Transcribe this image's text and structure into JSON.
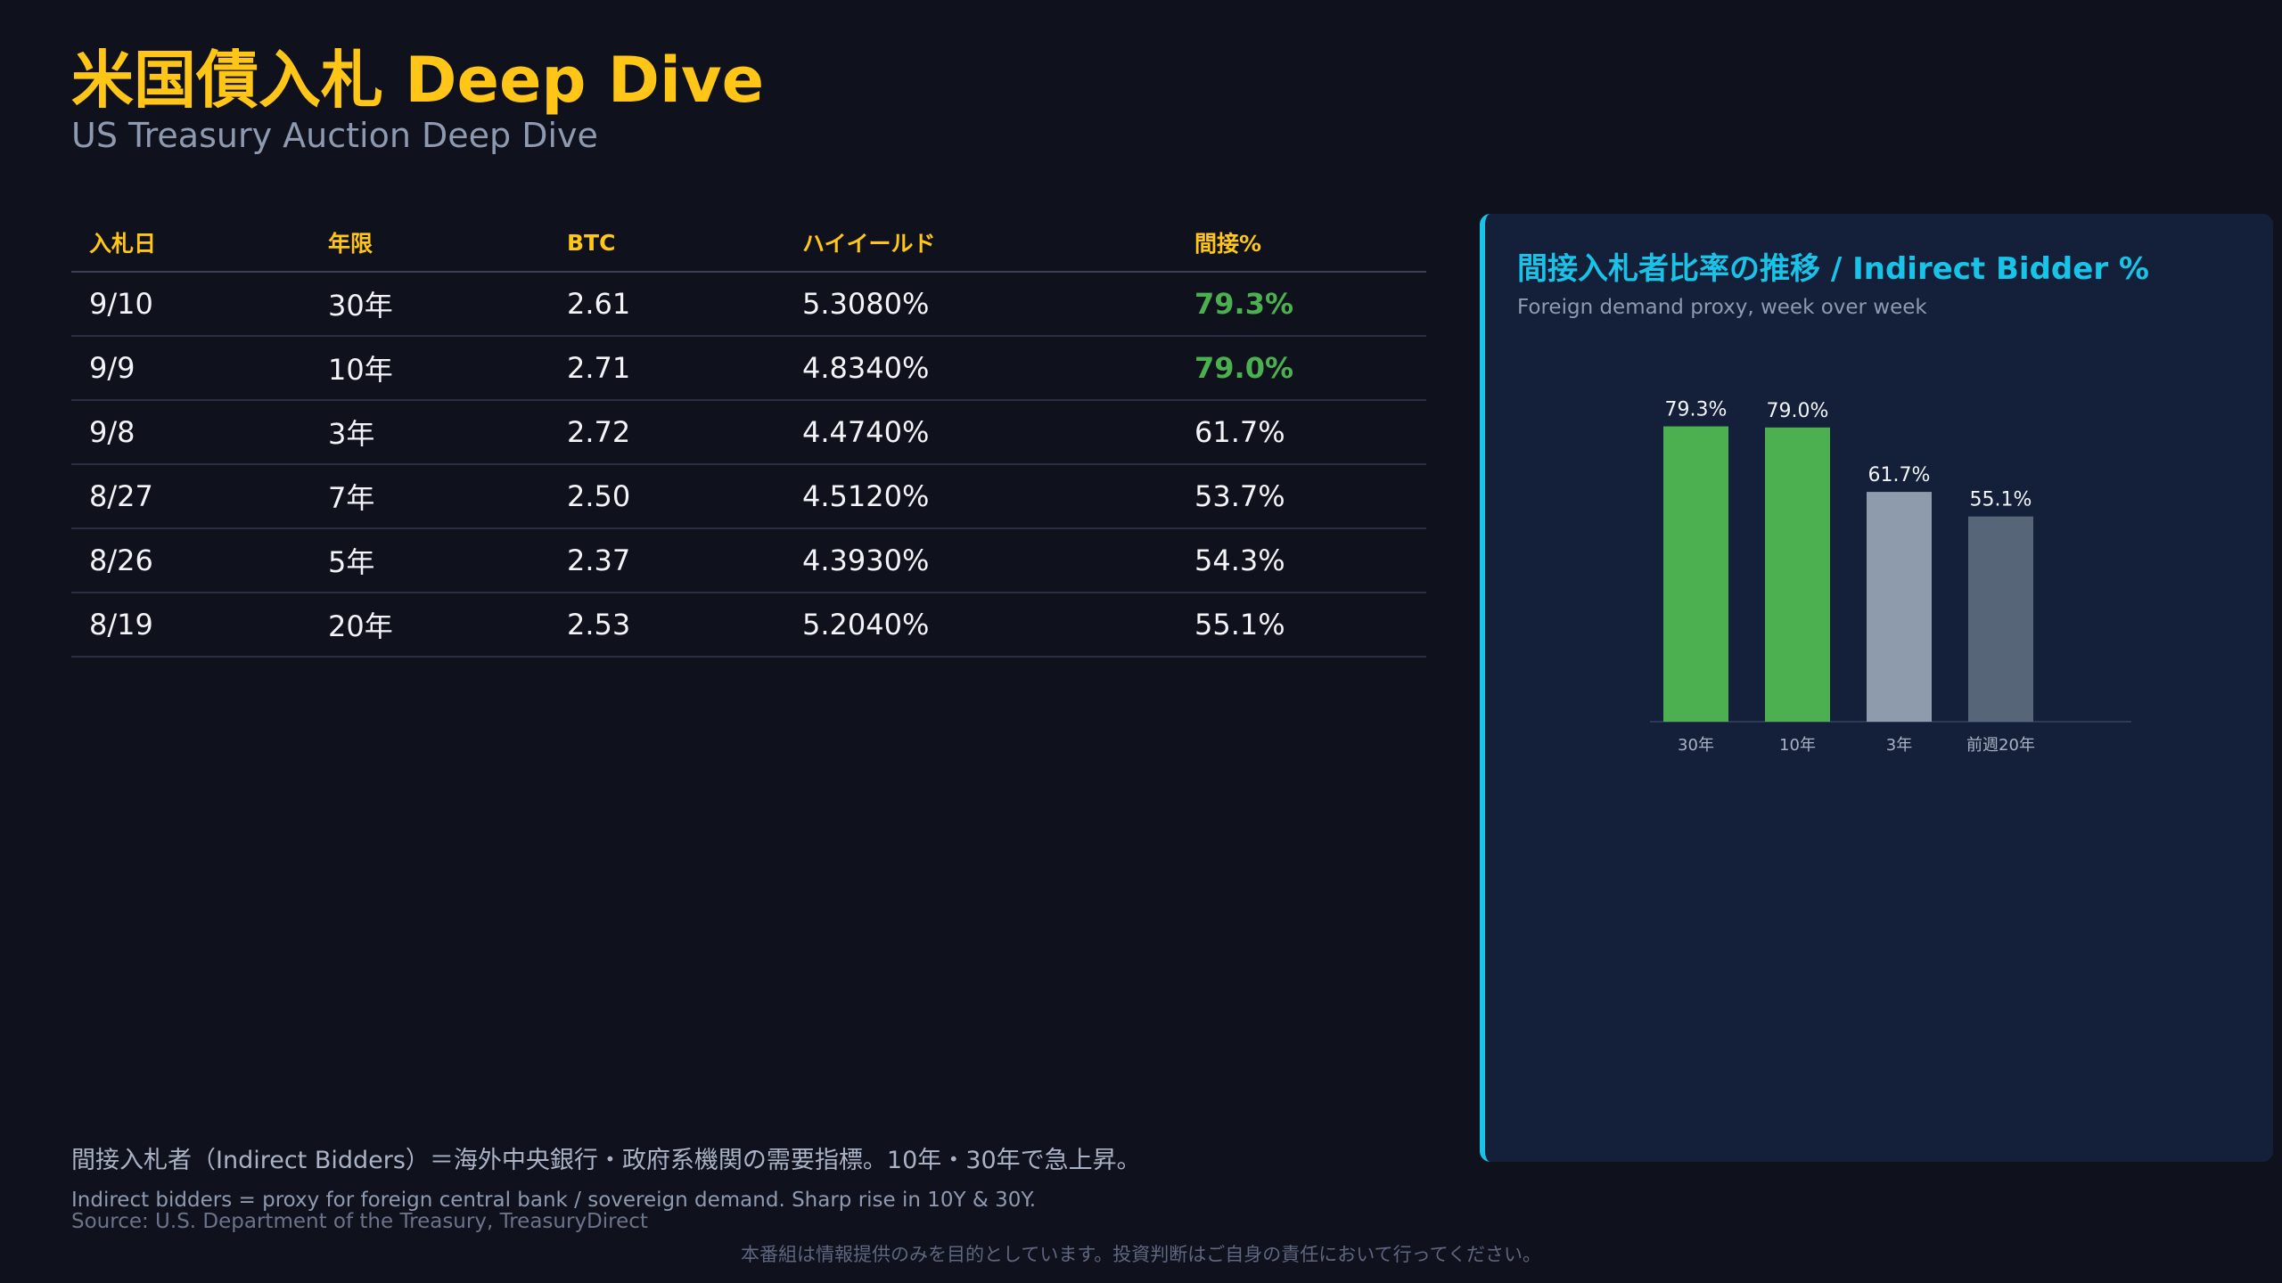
{
  "header": {
    "title": "米国債入札 Deep Dive",
    "subtitle": "US Treasury Auction Deep Dive"
  },
  "table": {
    "columns": [
      "入札日",
      "年限",
      "BTC",
      "ハイイールド",
      "間接%"
    ],
    "rows": [
      {
        "date": "9/10",
        "tenor": "30年",
        "btc": "2.61",
        "high_yield": "5.3080%",
        "indirect": "79.3%",
        "highlight": true
      },
      {
        "date": "9/9",
        "tenor": "10年",
        "btc": "2.71",
        "high_yield": "4.8340%",
        "indirect": "79.0%",
        "highlight": true
      },
      {
        "date": "9/8",
        "tenor": "3年",
        "btc": "2.72",
        "high_yield": "4.4740%",
        "indirect": "61.7%",
        "highlight": false
      },
      {
        "date": "8/27",
        "tenor": "7年",
        "btc": "2.50",
        "high_yield": "4.5120%",
        "indirect": "53.7%",
        "highlight": false
      },
      {
        "date": "8/26",
        "tenor": "5年",
        "btc": "2.37",
        "high_yield": "4.3930%",
        "indirect": "54.3%",
        "highlight": false
      },
      {
        "date": "8/19",
        "tenor": "20年",
        "btc": "2.53",
        "high_yield": "5.2040%",
        "indirect": "55.1%",
        "highlight": false
      }
    ]
  },
  "chart_data": {
    "type": "bar",
    "title": "間接入札者比率の推移 / Indirect Bidder %",
    "subtitle": "Foreign demand proxy, week over week",
    "categories": [
      "30年",
      "10年",
      "3年",
      "前週20年"
    ],
    "values": [
      79.3,
      79.0,
      61.7,
      55.1
    ],
    "value_labels": [
      "79.3%",
      "79.0%",
      "61.7%",
      "55.1%"
    ],
    "colors": [
      "#4caf50",
      "#4caf50",
      "#8d9bac",
      "#566578"
    ],
    "ylim": [
      0,
      100
    ],
    "grid": false,
    "xlabel": "",
    "ylabel": ""
  },
  "footer": {
    "note_ja": "間接入札者（Indirect Bidders）＝海外中央銀行・政府系機関の需要指標。10年・30年で急上昇。",
    "note_en": "Indirect bidders = proxy for foreign central bank / sovereign demand. Sharp rise in 10Y & 30Y.",
    "source": "Source: U.S. Department of the Treasury, TreasuryDirect",
    "disclaimer": "本番組は情報提供のみを目的としています。投資判断はご自身の責任において行ってください。"
  }
}
